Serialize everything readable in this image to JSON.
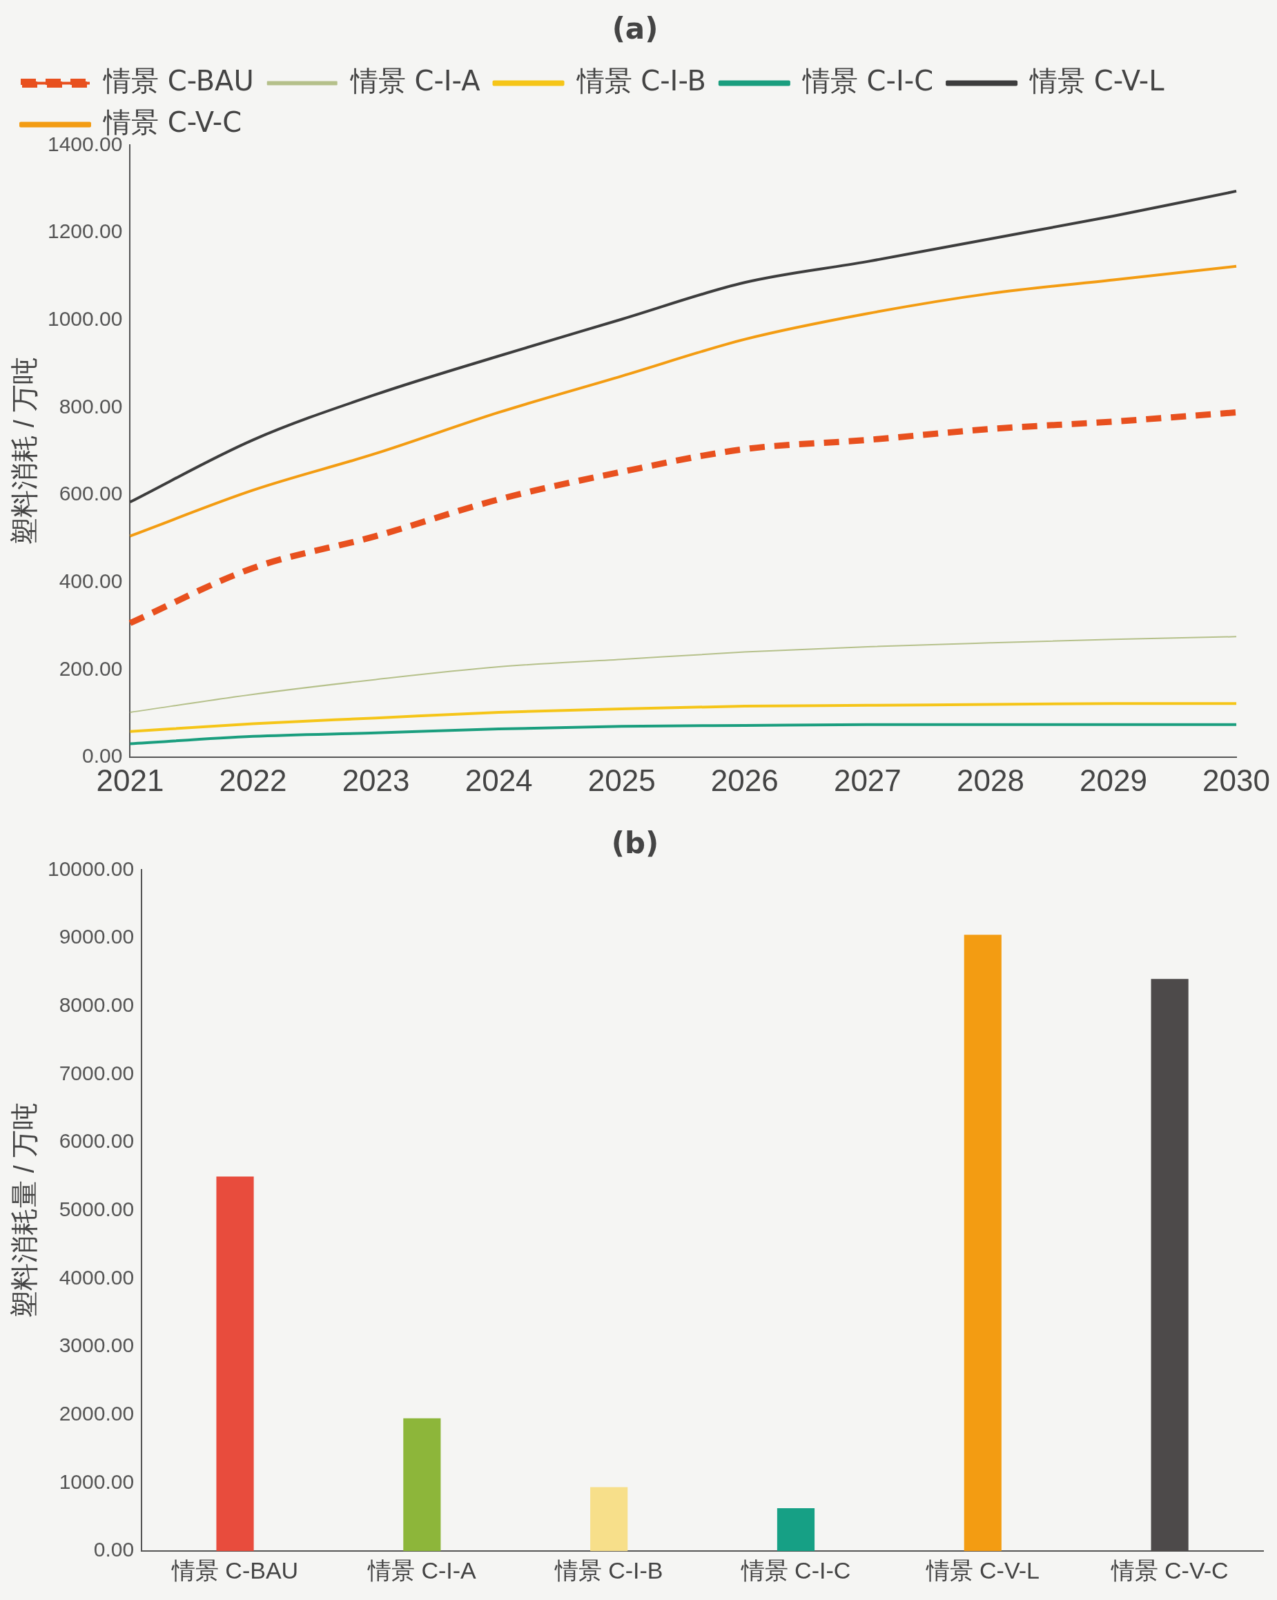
{
  "chart_data": [
    {
      "type": "line",
      "title": "(a)",
      "ylabel": "塑料消耗 / 万吨",
      "categories": [
        "2021",
        "2022",
        "2023",
        "2024",
        "2025",
        "2026",
        "2027",
        "2028",
        "2029",
        "2030"
      ],
      "series": [
        {
          "name": "情景 C-BAU",
          "color": "#e8501e",
          "line_style": "dashed",
          "values": [
            307,
            433,
            506,
            590,
            653,
            705,
            726,
            751,
            768,
            789
          ]
        },
        {
          "name": "情景 C-I-A",
          "color": "#b5c08a",
          "values": [
            103,
            144,
            178,
            207,
            224,
            241,
            253,
            262,
            270,
            276
          ]
        },
        {
          "name": "情景 C-I-B",
          "color": "#f5c518",
          "values": [
            59,
            77,
            90,
            103,
            111,
            117,
            119,
            121,
            123,
            123
          ]
        },
        {
          "name": "情景 C-I-C",
          "color": "#1a9e7e",
          "values": [
            31,
            48,
            56,
            65,
            71,
            73,
            75,
            75,
            75,
            75
          ]
        },
        {
          "name": "情景 C-V-L",
          "color": "#3d3d3d",
          "values": [
            584,
            726,
            830,
            918,
            1002,
            1086,
            1134,
            1186,
            1238,
            1295
          ]
        },
        {
          "name": "情景 C-V-C",
          "color": "#f39c12",
          "values": [
            506,
            611,
            695,
            789,
            872,
            956,
            1015,
            1061,
            1092,
            1123
          ]
        }
      ],
      "ylim": [
        0,
        1400
      ],
      "yticks": [
        {
          "value": 0,
          "label": "0.00"
        },
        {
          "value": 200,
          "label": "200.00"
        },
        {
          "value": 400,
          "label": "400.00"
        },
        {
          "value": 600,
          "label": "600.00"
        },
        {
          "value": 800,
          "label": "800.00"
        },
        {
          "value": 1000,
          "label": "1000.00"
        },
        {
          "value": 1200,
          "label": "1200.00"
        },
        {
          "value": 1400,
          "label": "1400.00"
        }
      ],
      "grid": false,
      "legend": "top left",
      "marker": "none"
    },
    {
      "type": "bar",
      "title": "(b)",
      "ylabel": "塑料消耗量 / 万吨",
      "categories": [
        "情景 C-BAU",
        "情景 C-I-A",
        "情景 C-I-B",
        "情景 C-I-C",
        "情景 C-V-L",
        "情景 C-V-C"
      ],
      "values": [
        5500,
        1950,
        940,
        630,
        9050,
        8400
      ],
      "colors": [
        "#e84c3d",
        "#8db63a",
        "#f7df8a",
        "#16a085",
        "#f39c12",
        "#4d4a4a"
      ],
      "ylim": [
        0,
        10000
      ],
      "yticks": [
        {
          "value": 0,
          "label": "0.00"
        },
        {
          "value": 1000,
          "label": "1000.00"
        },
        {
          "value": 2000,
          "label": "2000.00"
        },
        {
          "value": 3000,
          "label": "3000.00"
        },
        {
          "value": 4000,
          "label": "4000.00"
        },
        {
          "value": 5000,
          "label": "5000.00"
        },
        {
          "value": 6000,
          "label": "6000.00"
        },
        {
          "value": 7000,
          "label": "7000.00"
        },
        {
          "value": 8000,
          "label": "8000.00"
        },
        {
          "value": 9000,
          "label": "9000.00"
        },
        {
          "value": 10000,
          "label": "10000.00"
        }
      ],
      "grid": false,
      "legend": false
    }
  ]
}
